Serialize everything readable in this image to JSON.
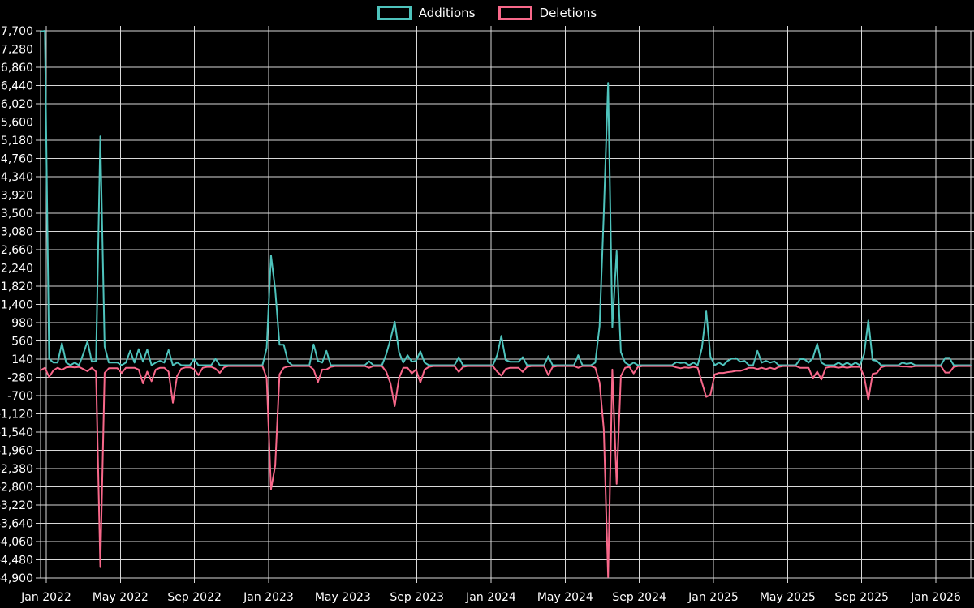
{
  "legend": {
    "items": [
      {
        "label": "Additions",
        "color": "#4ec3bc"
      },
      {
        "label": "Deletions",
        "color": "#f8688a"
      }
    ]
  },
  "chart_data": {
    "type": "line",
    "title": "",
    "xlabel": "",
    "ylabel": "",
    "grid": true,
    "legend_position": "top-center",
    "background": "#000000",
    "grid_color": "#d9d9d9",
    "text_color": "#ffffff",
    "ylim": [
      -4900,
      7700
    ],
    "y_tick_step": 420,
    "y_ticks": [
      7700,
      7280,
      6860,
      6440,
      6020,
      5600,
      5180,
      4760,
      4340,
      3920,
      3500,
      3080,
      2660,
      2240,
      1820,
      1400,
      980,
      560,
      140,
      -280,
      -700,
      -1120,
      -1540,
      -1960,
      -2380,
      -2800,
      -3220,
      -3640,
      -4060,
      -4480,
      -4900
    ],
    "x_tick_labels": [
      "Jan 2022",
      "May 2022",
      "Sep 2022",
      "Jan 2023",
      "May 2023",
      "Sep 2023",
      "Jan 2024",
      "May 2024",
      "Sep 2024",
      "Jan 2025",
      "May 2025",
      "Sep 2025",
      "Jan 2026"
    ],
    "x_unit": "weeks, Jan 2022 - Feb 2026",
    "series": [
      {
        "name": "Additions",
        "color": "#4ec3bc",
        "values": [
          7680,
          7700,
          150,
          60,
          60,
          505,
          60,
          0,
          60,
          0,
          260,
          550,
          80,
          100,
          5270,
          430,
          60,
          60,
          60,
          0,
          60,
          330,
          60,
          370,
          80,
          360,
          0,
          60,
          100,
          60,
          350,
          0,
          60,
          0,
          0,
          0,
          140,
          0,
          0,
          0,
          0,
          150,
          0,
          0,
          0,
          0,
          0,
          0,
          0,
          0,
          0,
          0,
          0,
          400,
          2530,
          1740,
          470,
          470,
          80,
          0,
          0,
          0,
          0,
          0,
          480,
          100,
          60,
          330,
          0,
          0,
          0,
          0,
          0,
          0,
          0,
          0,
          0,
          90,
          0,
          0,
          0,
          250,
          600,
          1000,
          300,
          60,
          230,
          80,
          100,
          320,
          60,
          0,
          0,
          0,
          0,
          0,
          0,
          0,
          185,
          0,
          0,
          0,
          0,
          0,
          0,
          0,
          0,
          230,
          675,
          120,
          80,
          80,
          80,
          185,
          0,
          0,
          0,
          0,
          0,
          210,
          0,
          0,
          0,
          0,
          0,
          0,
          230,
          0,
          0,
          0,
          60,
          900,
          3500,
          6500,
          880,
          2625,
          300,
          60,
          0,
          60,
          0,
          0,
          0,
          0,
          0,
          0,
          0,
          0,
          0,
          70,
          50,
          60,
          0,
          60,
          0,
          400,
          1240,
          200,
          0,
          60,
          0,
          100,
          150,
          165,
          80,
          100,
          0,
          0,
          330,
          60,
          100,
          60,
          90,
          0,
          0,
          0,
          0,
          0,
          140,
          140,
          60,
          165,
          495,
          60,
          0,
          0,
          0,
          60,
          0,
          60,
          0,
          60,
          0,
          250,
          1035,
          120,
          100,
          0,
          0,
          0,
          0,
          0,
          60,
          30,
          50,
          0,
          0,
          0,
          0,
          0,
          0,
          0,
          170,
          170,
          0,
          0,
          0,
          0,
          0
        ]
      },
      {
        "name": "Deletions",
        "color": "#f8688a",
        "values": [
          -120,
          -60,
          -270,
          -120,
          -60,
          -110,
          -50,
          -40,
          -50,
          -40,
          -90,
          -140,
          -60,
          -150,
          -4650,
          -180,
          -70,
          -70,
          -70,
          -180,
          -60,
          -60,
          -60,
          -100,
          -420,
          -150,
          -370,
          -100,
          -60,
          -60,
          -150,
          -865,
          -250,
          -80,
          -50,
          -50,
          -90,
          -230,
          -60,
          -40,
          -40,
          -80,
          -180,
          -50,
          -20,
          -20,
          -20,
          -20,
          -20,
          -20,
          -20,
          -20,
          -20,
          -300,
          -2860,
          -2310,
          -210,
          -60,
          -30,
          -20,
          -20,
          -20,
          -20,
          -20,
          -100,
          -390,
          -100,
          -100,
          -40,
          -20,
          -20,
          -20,
          -20,
          -20,
          -20,
          -20,
          -20,
          -60,
          -20,
          -20,
          -20,
          -150,
          -420,
          -940,
          -300,
          -60,
          -60,
          -190,
          -100,
          -400,
          -100,
          -40,
          -20,
          -20,
          -20,
          -20,
          -20,
          -20,
          -155,
          -40,
          -20,
          -20,
          -20,
          -20,
          -20,
          -20,
          -20,
          -150,
          -240,
          -90,
          -60,
          -60,
          -60,
          -155,
          -40,
          -20,
          -20,
          -20,
          -20,
          -230,
          -40,
          -20,
          -20,
          -20,
          -20,
          -20,
          -60,
          -20,
          -20,
          -20,
          -60,
          -400,
          -1480,
          -4880,
          -100,
          -2730,
          -250,
          -60,
          -40,
          -190,
          -40,
          -20,
          -20,
          -20,
          -20,
          -20,
          -20,
          -20,
          -20,
          -50,
          -70,
          -50,
          -60,
          -40,
          -60,
          -400,
          -730,
          -680,
          -210,
          -180,
          -180,
          -160,
          -150,
          -130,
          -130,
          -100,
          -60,
          -60,
          -90,
          -60,
          -90,
          -60,
          -90,
          -40,
          -20,
          -20,
          -20,
          -20,
          -60,
          -60,
          -60,
          -300,
          -150,
          -330,
          -60,
          -40,
          -40,
          -60,
          -40,
          -60,
          -40,
          -40,
          -40,
          -250,
          -800,
          -200,
          -180,
          -50,
          -20,
          -20,
          -20,
          -20,
          -30,
          -30,
          -40,
          -20,
          -20,
          -20,
          -20,
          -20,
          -20,
          -20,
          -170,
          -170,
          -40,
          -20,
          -20,
          -20,
          -20
        ]
      }
    ]
  }
}
